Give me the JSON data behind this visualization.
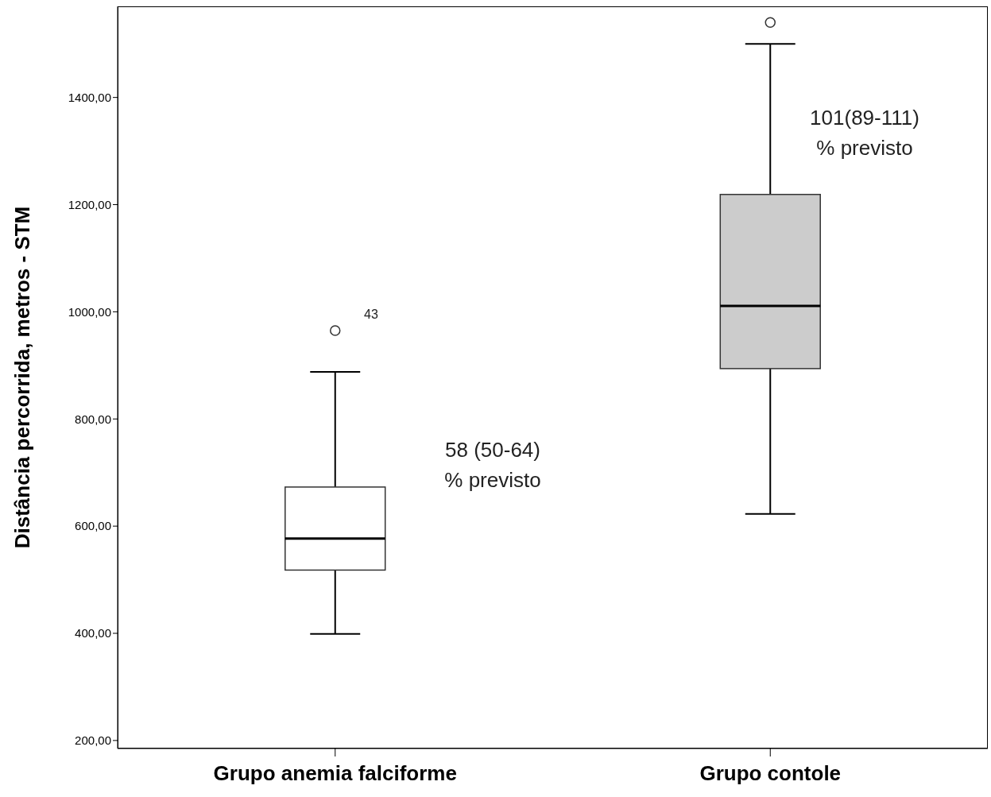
{
  "chart_data": {
    "type": "box",
    "ylabel": "Distância percorrida, metros - STM",
    "categories": [
      "Grupo anemia falciforme",
      "Grupo contole"
    ],
    "colors": [
      "#ffffff",
      "#cccccc"
    ],
    "boxes": [
      {
        "low": 399,
        "q1": 518,
        "median": 577,
        "q3": 673,
        "high": 888,
        "outliers": [
          965
        ]
      },
      {
        "low": 623,
        "q1": 894,
        "median": 1011,
        "q3": 1219,
        "high": 1500,
        "outliers": [
          1540
        ]
      }
    ],
    "ylim": [
      185,
      1570
    ],
    "yticks": [
      {
        "value": 200,
        "label": "200,00"
      },
      {
        "value": 400,
        "label": "400,00"
      },
      {
        "value": 600,
        "label": "600,00"
      },
      {
        "value": 800,
        "label": "800,00"
      },
      {
        "value": 1000,
        "label": "1000,00"
      },
      {
        "value": 1200,
        "label": "1200,00"
      },
      {
        "value": 1400,
        "label": "1400,00"
      }
    ],
    "annotations": [
      "43",
      "58 (50-64)\n% previsto",
      "101(89-111)\n% previsto"
    ],
    "grid": false
  }
}
